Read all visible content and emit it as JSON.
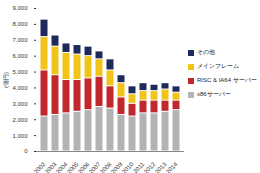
{
  "chart_data": {
    "type": "bar",
    "stacked": true,
    "y_label": "(億円)",
    "categories": [
      "2002",
      "2003",
      "2004",
      "2005",
      "2006",
      "2007",
      "2008",
      "2009",
      "2010",
      "2011",
      "2012",
      "2013",
      "2014"
    ],
    "series": [
      {
        "name": "x86サーバー",
        "color": "#b3b3b3",
        "values": [
          2200,
          2300,
          2400,
          2500,
          2600,
          2800,
          2700,
          2300,
          2200,
          2400,
          2400,
          2500,
          2600
        ]
      },
      {
        "name": "RISC & IA64 サーバー",
        "color": "#c0282d",
        "values": [
          2900,
          2500,
          2100,
          2000,
          2000,
          1900,
          1400,
          1100,
          800,
          800,
          800,
          700,
          600
        ]
      },
      {
        "name": "メインフレーム",
        "color": "#f2c318",
        "values": [
          2100,
          1800,
          1700,
          1600,
          1400,
          1100,
          1000,
          900,
          600,
          600,
          600,
          700,
          500
        ]
      },
      {
        "name": "その他",
        "color": "#1f2a5c",
        "values": [
          1100,
          700,
          600,
          600,
          600,
          500,
          700,
          500,
          500,
          500,
          400,
          400,
          400
        ]
      }
    ],
    "ylim": [
      0,
      9000
    ],
    "yticks": [
      0,
      {
        "value": 1000,
        "label": "1,000"
      },
      {
        "value": 2000,
        "label": "2,000"
      },
      {
        "value": 3000,
        "label": "3,000"
      },
      {
        "value": 4000,
        "label": "4,000"
      },
      {
        "value": 5000,
        "label": "5,000"
      },
      {
        "value": 6000,
        "label": "6,000"
      },
      {
        "value": 7000,
        "label": "7,000"
      },
      {
        "value": 8000,
        "label": "8,000"
      },
      {
        "value": 9000,
        "label": "9,000"
      }
    ],
    "grid": false,
    "legend": "right"
  }
}
